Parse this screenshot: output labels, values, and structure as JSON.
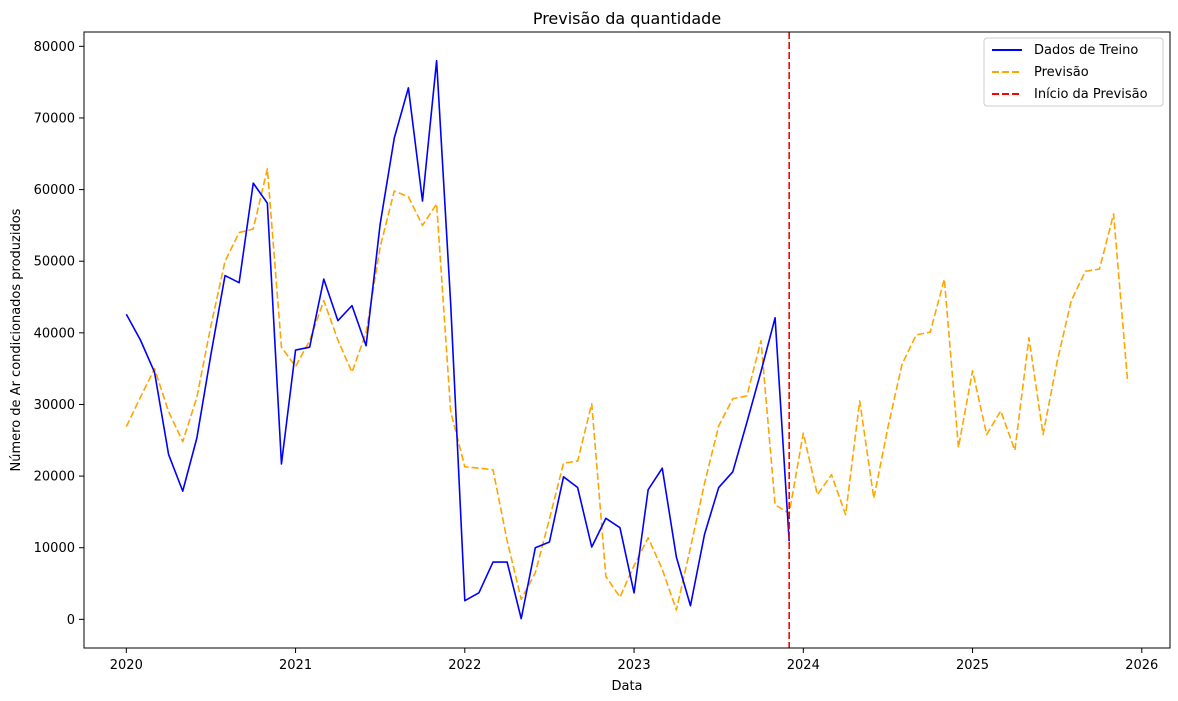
{
  "chart_data": {
    "type": "line",
    "title": "Previsão da quantidade",
    "xlabel": "Data",
    "ylabel": "Número de Ar condicionados produzidos",
    "x_ticks": [
      "2020",
      "2021",
      "2022",
      "2023",
      "2024",
      "2025",
      "2026"
    ],
    "y_ticks": [
      "0",
      "10000",
      "20000",
      "30000",
      "40000",
      "50000",
      "60000",
      "70000",
      "80000"
    ],
    "xlim": [
      "2019-10",
      "2026-03"
    ],
    "ylim": [
      -4000,
      82000
    ],
    "grid": false,
    "legend_position": "top-right",
    "forecast_start": "2023-12",
    "series": [
      {
        "name": "Dados de Treino",
        "color": "#0000ff",
        "style": "solid",
        "x": [
          "2020-01",
          "2020-02",
          "2020-03",
          "2020-04",
          "2020-05",
          "2020-06",
          "2020-07",
          "2020-08",
          "2020-09",
          "2020-10",
          "2020-11",
          "2020-12",
          "2021-01",
          "2021-02",
          "2021-03",
          "2021-04",
          "2021-05",
          "2021-06",
          "2021-07",
          "2021-08",
          "2021-09",
          "2021-10",
          "2021-11",
          "2021-12",
          "2022-01",
          "2022-02",
          "2022-03",
          "2022-04",
          "2022-05",
          "2022-06",
          "2022-07",
          "2022-08",
          "2022-09",
          "2022-10",
          "2022-11",
          "2022-12",
          "2023-01",
          "2023-02",
          "2023-03",
          "2023-04",
          "2023-05",
          "2023-06",
          "2023-07",
          "2023-08",
          "2023-09",
          "2023-10",
          "2023-11",
          "2023-12"
        ],
        "values": [
          42600,
          39000,
          34500,
          23000,
          17900,
          25300,
          37000,
          48000,
          47000,
          60900,
          58100,
          21700,
          37600,
          38000,
          47500,
          41700,
          43800,
          38200,
          55200,
          67200,
          74200,
          58400,
          78000,
          44000,
          2600,
          3700,
          8000,
          8000,
          100,
          10000,
          10800,
          19900,
          18400,
          10100,
          14100,
          12800,
          3700,
          18100,
          21100,
          8700,
          1900,
          11900,
          18400,
          20600,
          27500,
          34600,
          42100,
          10900
        ]
      },
      {
        "name": "Previsão",
        "color": "#ffa500",
        "style": "dashed",
        "x": [
          "2020-01",
          "2020-02",
          "2020-03",
          "2020-04",
          "2020-05",
          "2020-06",
          "2020-07",
          "2020-08",
          "2020-09",
          "2020-10",
          "2020-11",
          "2020-12",
          "2021-01",
          "2021-02",
          "2021-03",
          "2021-04",
          "2021-05",
          "2021-06",
          "2021-07",
          "2021-08",
          "2021-09",
          "2021-10",
          "2021-11",
          "2021-12",
          "2022-01",
          "2022-02",
          "2022-03",
          "2022-04",
          "2022-05",
          "2022-06",
          "2022-07",
          "2022-08",
          "2022-09",
          "2022-10",
          "2022-11",
          "2022-12",
          "2023-01",
          "2023-02",
          "2023-03",
          "2023-04",
          "2023-05",
          "2023-06",
          "2023-07",
          "2023-08",
          "2023-09",
          "2023-10",
          "2023-11",
          "2023-12",
          "2024-01",
          "2024-02",
          "2024-03",
          "2024-04",
          "2024-05",
          "2024-06",
          "2024-07",
          "2024-08",
          "2024-09",
          "2024-10",
          "2024-11",
          "2024-12",
          "2025-01",
          "2025-02",
          "2025-03",
          "2025-04",
          "2025-05",
          "2025-06",
          "2025-07",
          "2025-08",
          "2025-09",
          "2025-10",
          "2025-11",
          "2025-12"
        ],
        "values": [
          26900,
          31000,
          35000,
          29000,
          24800,
          31000,
          41000,
          50000,
          54000,
          54500,
          62900,
          38000,
          35300,
          38900,
          44500,
          39000,
          34500,
          40000,
          52000,
          59800,
          59000,
          55000,
          58000,
          29000,
          21300,
          21100,
          20900,
          11000,
          2800,
          6500,
          14000,
          21800,
          22100,
          30100,
          6000,
          3100,
          7500,
          11400,
          7000,
          1300,
          10000,
          19000,
          27000,
          30800,
          31200,
          38900,
          16000,
          14800,
          26000,
          17400,
          20200,
          14600,
          30500,
          16900,
          26800,
          35600,
          39700,
          40100,
          47500,
          24000,
          34700,
          25800,
          29100,
          23600,
          39300,
          25800,
          36000,
          44500,
          48600,
          48900,
          56600,
          33100
        ]
      },
      {
        "name": "Início da Previsão",
        "color": "#ff0000",
        "style": "dashed"
      }
    ]
  }
}
